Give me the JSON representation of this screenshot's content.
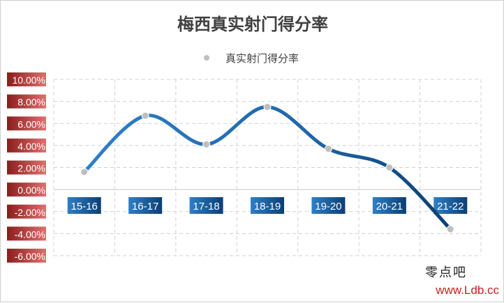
{
  "chart_data": {
    "type": "line",
    "title": "梅西真实射门得分率",
    "categories": [
      "15-16",
      "16-17",
      "17-18",
      "18-19",
      "19-20",
      "20-21",
      "21-22"
    ],
    "series": [
      {
        "name": "真实射门得分率",
        "values": [
          1.6,
          6.7,
          4.1,
          7.5,
          3.7,
          2.0,
          -3.6
        ]
      }
    ],
    "y_ticks": [
      "-6.00%",
      "-4.00%",
      "-2.00%",
      "0.00%",
      "2.00%",
      "4.00%",
      "6.00%",
      "8.00%",
      "10.00%"
    ],
    "ylim": [
      -6,
      10
    ],
    "y_unit": "%",
    "grid": true,
    "grid_style": "dashed",
    "smooth": true,
    "legend_position": "top-center",
    "colors": {
      "line_start": "#2f7fc6",
      "line_end": "#0c3f73",
      "marker": "#bfbfbf",
      "tick_label_bg_start": "#8b1d1d",
      "tick_label_bg_end": "#e07070",
      "category_label_bg_start": "#2f7fc6",
      "category_label_bg_end": "#0c3f73",
      "grid": "#d0d0d0",
      "title": "#404040"
    }
  },
  "watermark": {
    "line1": "零点吧",
    "line2": "www.Ldb.cc"
  }
}
